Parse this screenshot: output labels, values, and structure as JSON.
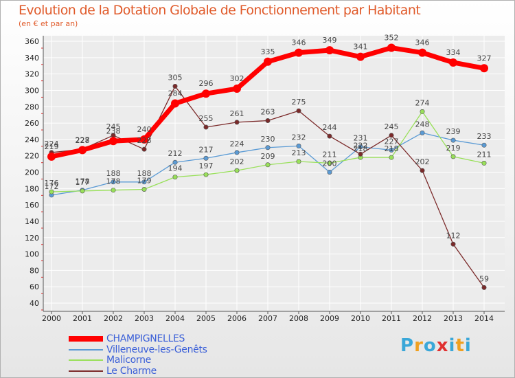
{
  "header": {
    "title": "Evolution de la Dotation Globale de Fonctionnement par Habitant",
    "subtitle": "(en € et par an)"
  },
  "chart_data": {
    "type": "line",
    "title": "Evolution de la Dotation Globale de Fonctionnement par Habitant",
    "subtitle": "(en € et par an)",
    "xlabel": "",
    "ylabel": "",
    "x": [
      "2000",
      "2001",
      "2002",
      "2003",
      "2004",
      "2005",
      "2006",
      "2007",
      "2008",
      "2009",
      "2010",
      "2011",
      "2012",
      "2013",
      "2014"
    ],
    "ylim": [
      40,
      360
    ],
    "yticks": [
      40,
      60,
      80,
      100,
      120,
      140,
      160,
      180,
      200,
      220,
      240,
      260,
      280,
      300,
      320,
      340,
      360
    ],
    "grid": true,
    "legend_position": "bottom-left",
    "series": [
      {
        "name": "CHAMPIGNELLES",
        "color": "#ff0000",
        "emphasis": true,
        "values": [
          219,
          227,
          238,
          240,
          284,
          296,
          302,
          335,
          346,
          349,
          341,
          352,
          346,
          334,
          327
        ],
        "labels": [
          "219",
          "227",
          "238",
          "240",
          "284",
          "296",
          "302",
          "335",
          "346",
          "349",
          "341",
          "352",
          "346",
          "334",
          "327"
        ]
      },
      {
        "name": "Villeneuve-les-Genêts",
        "color": "#5b9bd5",
        "values": [
          172,
          178,
          188,
          188,
          212,
          217,
          224,
          230,
          232,
          200,
          231,
          227,
          248,
          239,
          233
        ],
        "labels": [
          "172",
          "178",
          "188",
          "188",
          "212",
          "217",
          "224",
          "230",
          "232",
          "200",
          "231",
          "227",
          "248",
          "239",
          "233"
        ]
      },
      {
        "name": "Malicorne",
        "color": "#99e05a",
        "values": [
          176,
          177,
          178,
          179,
          194,
          197,
          202,
          209,
          213,
          211,
          218,
          218,
          274,
          219,
          211
        ],
        "labels": [
          "176",
          "177",
          "178",
          "179",
          "194",
          "197",
          "202",
          "209",
          "213",
          "211",
          "218",
          "218",
          "274",
          "219",
          "211"
        ]
      },
      {
        "name": "Le Charme",
        "color": "#7b2a2a",
        "values": [
          224,
          228,
          245,
          228,
          305,
          255,
          261,
          263,
          275,
          244,
          222,
          245,
          202,
          112,
          59
        ],
        "labels": [
          "224",
          "228",
          "245",
          "228",
          "305",
          "255",
          "261",
          "263",
          "275",
          "244",
          "222",
          "245",
          "202",
          "112",
          "59"
        ]
      }
    ]
  },
  "brand": {
    "letters": [
      "P",
      "r",
      "o",
      "x",
      "i",
      "t",
      "i"
    ],
    "colors": [
      "#3aa7d8",
      "#f0a020",
      "#3aa7d8",
      "#e03030",
      "#3aa7d8",
      "#f0a020",
      "#3aa7d8"
    ]
  }
}
